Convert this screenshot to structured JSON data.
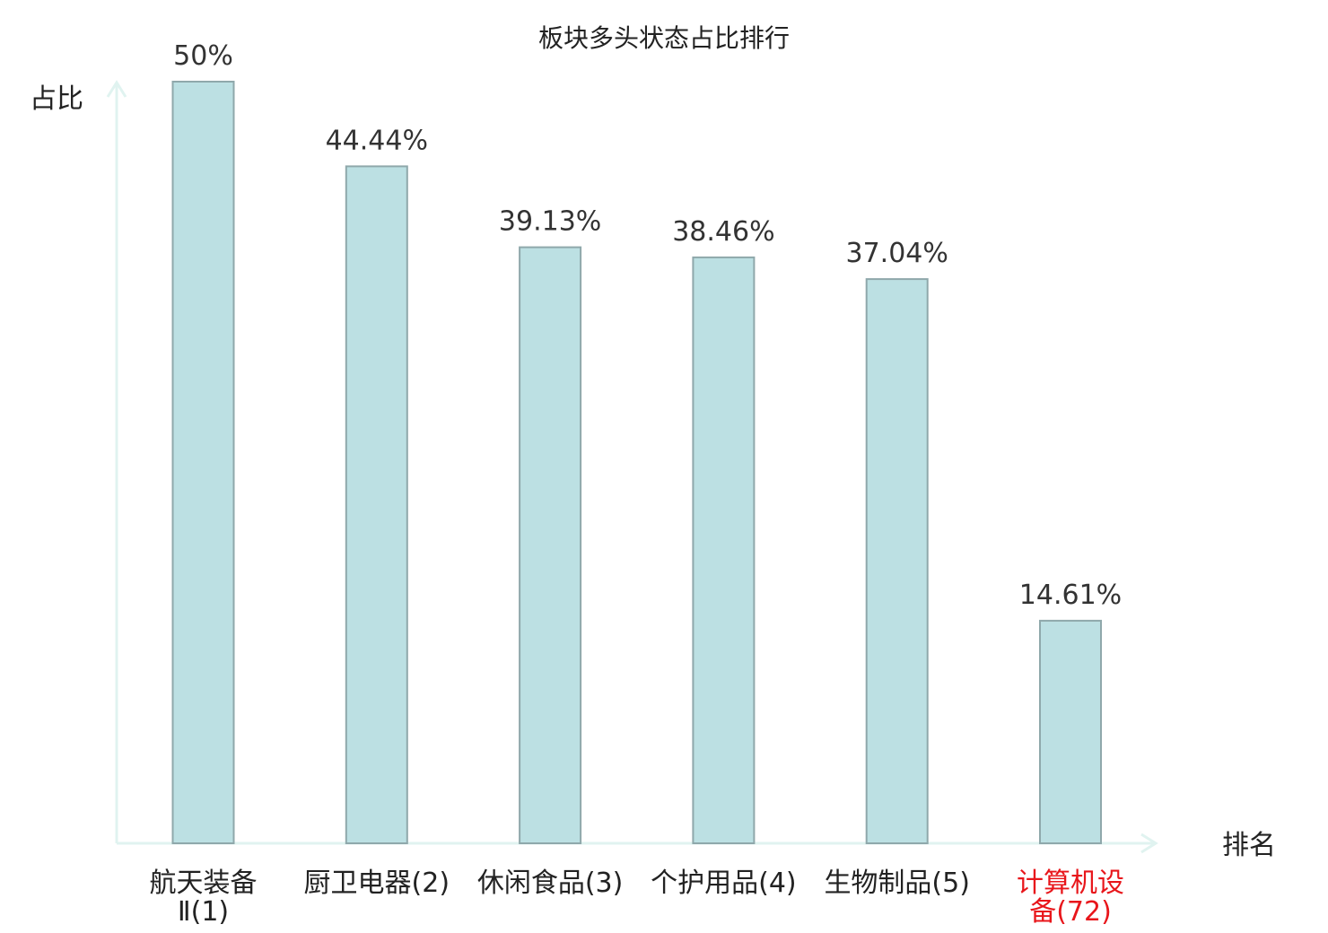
{
  "chart_data": {
    "type": "bar",
    "title": "板块多头状态占比排行",
    "xlabel": "排名",
    "ylabel": "占比",
    "categories": [
      {
        "lines": [
          "航天装备",
          "Ⅱ(1)"
        ],
        "highlight": false
      },
      {
        "lines": [
          "厨卫电器(2)"
        ],
        "highlight": false
      },
      {
        "lines": [
          "休闲食品(3)"
        ],
        "highlight": false
      },
      {
        "lines": [
          "个护用品(4)"
        ],
        "highlight": false
      },
      {
        "lines": [
          "生物制品(5)"
        ],
        "highlight": false
      },
      {
        "lines": [
          "计算机设",
          "备(72)"
        ],
        "highlight": true
      }
    ],
    "values": [
      50,
      44.44,
      39.13,
      38.46,
      37.04,
      14.61
    ],
    "value_labels": [
      "50%",
      "44.44%",
      "39.13%",
      "38.46%",
      "37.04%",
      "14.61%"
    ],
    "ylim": [
      0,
      50
    ],
    "grid": false,
    "colors": {
      "bar_fill": "#bce0e3",
      "bar_stroke": "#8fa8ab",
      "axis": "#e0f3f0",
      "label": "#222222",
      "value_label": "#333333",
      "highlight": "#e8161b"
    }
  }
}
